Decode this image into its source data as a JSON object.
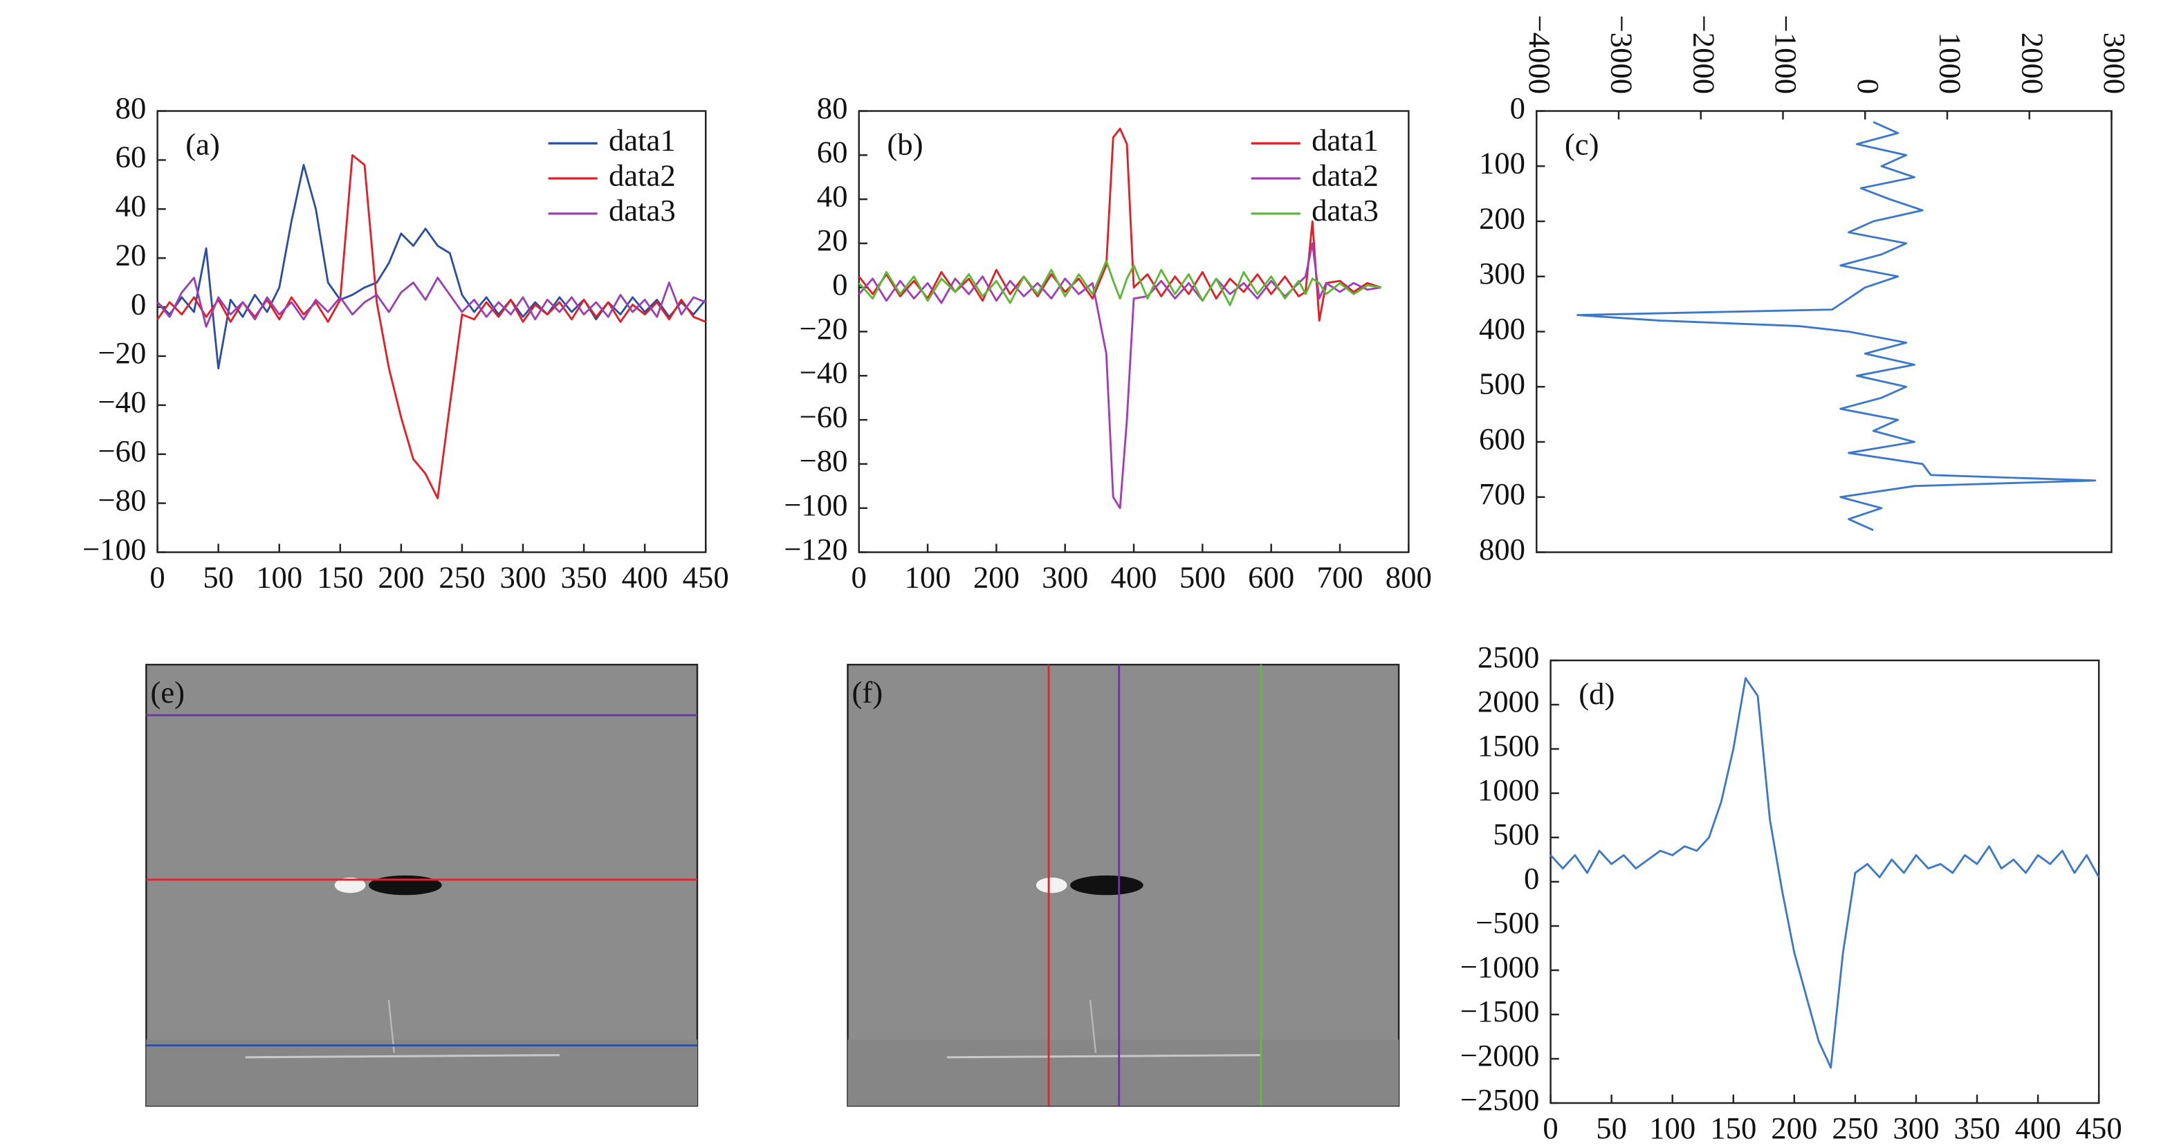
{
  "chart_data": [
    {
      "type": "line",
      "annotation": "(a)",
      "legend": "upper right",
      "x": [
        0,
        10,
        20,
        30,
        40,
        50,
        60,
        70,
        80,
        90,
        100,
        110,
        120,
        130,
        140,
        150,
        160,
        170,
        180,
        190,
        200,
        210,
        220,
        230,
        240,
        250,
        260,
        270,
        280,
        290,
        300,
        310,
        320,
        330,
        340,
        350,
        360,
        370,
        380,
        390,
        400,
        410,
        420,
        430,
        440,
        450
      ],
      "series": [
        {
          "name": "data1",
          "color": "#2b4ea2",
          "values": [
            2,
            -3,
            4,
            -2,
            24,
            -25,
            3,
            -4,
            5,
            -2,
            8,
            35,
            58,
            40,
            10,
            3,
            5,
            8,
            10,
            18,
            30,
            25,
            32,
            25,
            22,
            5,
            -2,
            4,
            -3,
            3,
            -4,
            2,
            -3,
            4,
            -2,
            3,
            -5,
            2,
            -3,
            4,
            -2,
            3,
            -4,
            2,
            -3,
            3
          ]
        },
        {
          "name": "data2",
          "color": "#e31e24",
          "values": [
            -5,
            2,
            -3,
            4,
            -4,
            3,
            -6,
            2,
            -4,
            3,
            -5,
            4,
            -3,
            2,
            -6,
            3,
            62,
            58,
            2,
            -25,
            -45,
            -62,
            -68,
            -78,
            -40,
            -3,
            -5,
            2,
            -4,
            3,
            -6,
            1,
            -3,
            2,
            -5,
            3,
            -4,
            2,
            -6,
            1,
            -3,
            2,
            -5,
            3,
            -4,
            -6
          ]
        },
        {
          "name": "data3",
          "color": "#9b3fb5",
          "values": [
            2,
            -4,
            6,
            12,
            -8,
            4,
            -3,
            2,
            -5,
            4,
            -3,
            2,
            -5,
            3,
            -2,
            4,
            -3,
            2,
            5,
            -2,
            6,
            10,
            3,
            12,
            5,
            -2,
            3,
            -4,
            2,
            -3,
            4,
            -5,
            3,
            -2,
            4,
            -3,
            2,
            -4,
            5,
            -2,
            3,
            -4,
            10,
            -3,
            4,
            2
          ]
        }
      ],
      "xlim": [
        0,
        450
      ],
      "xticks": [
        0,
        50,
        100,
        150,
        200,
        250,
        300,
        350,
        400,
        450
      ],
      "ylim": [
        -100,
        80
      ],
      "yticks": [
        {
          "value": -100,
          "label": "−100"
        },
        {
          "value": -80,
          "label": "−80"
        },
        {
          "value": -60,
          "label": "−60"
        },
        {
          "value": -40,
          "label": "−40"
        },
        {
          "value": -20,
          "label": "−20"
        },
        0,
        20,
        40,
        60,
        80
      ]
    },
    {
      "type": "line",
      "annotation": "(b)",
      "legend": "upper right",
      "x": [
        0,
        20,
        40,
        60,
        80,
        100,
        120,
        140,
        160,
        180,
        200,
        220,
        240,
        260,
        280,
        300,
        320,
        340,
        360,
        370,
        380,
        390,
        400,
        420,
        440,
        460,
        480,
        500,
        520,
        540,
        560,
        580,
        600,
        620,
        640,
        650,
        660,
        670,
        680,
        700,
        720,
        740,
        760
      ],
      "series": [
        {
          "name": "data1",
          "color": "#e31e24",
          "values": [
            5,
            -3,
            6,
            -4,
            3,
            -5,
            7,
            -2,
            4,
            -6,
            8,
            -3,
            5,
            -4,
            6,
            -2,
            4,
            -5,
            10,
            68,
            72,
            65,
            0,
            6,
            -4,
            5,
            -3,
            7,
            -5,
            4,
            -2,
            6,
            -3,
            5,
            -4,
            -2,
            30,
            -15,
            2,
            3,
            -2,
            2,
            0
          ]
        },
        {
          "name": "data2",
          "color": "#a23cb8",
          "values": [
            -3,
            4,
            -6,
            3,
            -5,
            2,
            -7,
            4,
            -3,
            5,
            -6,
            3,
            -4,
            2,
            -5,
            4,
            -3,
            2,
            -30,
            -95,
            -100,
            -60,
            -5,
            -4,
            3,
            -5,
            2,
            -6,
            4,
            -3,
            2,
            -5,
            3,
            -4,
            2,
            5,
            20,
            -5,
            2,
            -2,
            2,
            -1,
            0
          ]
        },
        {
          "name": "data3",
          "color": "#5ab832",
          "values": [
            2,
            -5,
            7,
            -3,
            5,
            -6,
            4,
            -2,
            6,
            -4,
            3,
            -7,
            5,
            -3,
            8,
            -4,
            6,
            -3,
            12,
            3,
            -5,
            4,
            10,
            -5,
            8,
            -3,
            6,
            -6,
            4,
            -8,
            7,
            -3,
            5,
            -5,
            3,
            -3,
            4,
            2,
            -3,
            2,
            -3,
            1,
            0
          ]
        }
      ],
      "xlim": [
        0,
        800
      ],
      "xticks": [
        0,
        100,
        200,
        300,
        400,
        500,
        600,
        700,
        800
      ],
      "ylim": [
        -120,
        80
      ],
      "yticks": [
        {
          "value": -120,
          "label": "−120"
        },
        {
          "value": -100,
          "label": "−100"
        },
        {
          "value": -80,
          "label": "−80"
        },
        {
          "value": -60,
          "label": "−60"
        },
        {
          "value": -40,
          "label": "−40"
        },
        {
          "value": -20,
          "label": "−20"
        },
        0,
        20,
        40,
        60,
        80
      ]
    },
    {
      "type": "line",
      "annotation": "(c)",
      "orientation": "vertical",
      "color": "#3c78c8",
      "x": [
        20,
        40,
        60,
        80,
        100,
        120,
        140,
        160,
        180,
        200,
        220,
        240,
        260,
        280,
        300,
        320,
        340,
        360,
        370,
        380,
        390,
        400,
        420,
        440,
        460,
        480,
        500,
        520,
        540,
        560,
        580,
        600,
        620,
        640,
        660,
        670,
        680,
        700,
        720,
        740,
        760
      ],
      "values": [
        100,
        400,
        -100,
        500,
        200,
        600,
        -50,
        300,
        700,
        100,
        -200,
        500,
        200,
        -300,
        400,
        0,
        -200,
        -400,
        -3500,
        -2500,
        -800,
        -200,
        500,
        0,
        600,
        -100,
        500,
        200,
        -300,
        400,
        100,
        600,
        -200,
        700,
        800,
        2800,
        600,
        -300,
        200,
        -200,
        100
      ],
      "xlim": [
        0,
        800
      ],
      "xticks": [
        0,
        100,
        200,
        300,
        400,
        500,
        600,
        700,
        800
      ],
      "ylim": [
        -4000,
        3000
      ],
      "yticks": [
        {
          "value": -4000,
          "label": "−4000"
        },
        {
          "value": -3000,
          "label": "−3000"
        },
        {
          "value": -2000,
          "label": "−2000"
        },
        {
          "value": -1000,
          "label": "−1000"
        },
        0,
        1000,
        2000,
        3000
      ]
    },
    {
      "type": "line",
      "annotation": "(d)",
      "color": "#3c78c8",
      "x": [
        0,
        10,
        20,
        30,
        40,
        50,
        60,
        70,
        80,
        90,
        100,
        110,
        120,
        130,
        140,
        150,
        160,
        170,
        180,
        190,
        200,
        210,
        220,
        230,
        240,
        250,
        260,
        270,
        280,
        290,
        300,
        310,
        320,
        330,
        340,
        350,
        360,
        370,
        380,
        390,
        400,
        410,
        420,
        430,
        440,
        450
      ],
      "values": [
        300,
        150,
        300,
        100,
        350,
        200,
        300,
        150,
        250,
        350,
        300,
        400,
        350,
        500,
        900,
        1500,
        2300,
        2100,
        700,
        -100,
        -800,
        -1300,
        -1800,
        -2100,
        -800,
        100,
        200,
        50,
        250,
        100,
        300,
        150,
        200,
        100,
        300,
        200,
        400,
        150,
        250,
        100,
        300,
        200,
        350,
        100,
        300,
        50
      ],
      "xlim": [
        0,
        450
      ],
      "xticks": [
        0,
        50,
        100,
        150,
        200,
        250,
        300,
        350,
        400,
        450
      ],
      "ylim": [
        -2500,
        2500
      ],
      "yticks": [
        {
          "value": -2500,
          "label": "−2500"
        },
        {
          "value": -2000,
          "label": "−2000"
        },
        {
          "value": -1500,
          "label": "−1500"
        },
        {
          "value": -1000,
          "label": "−1000"
        },
        {
          "value": -500,
          "label": "−500"
        },
        0,
        500,
        1000,
        1500,
        2000,
        2500
      ]
    },
    {
      "type": "image",
      "annotation": "(e)"
    },
    {
      "type": "image",
      "annotation": "(f)"
    }
  ]
}
